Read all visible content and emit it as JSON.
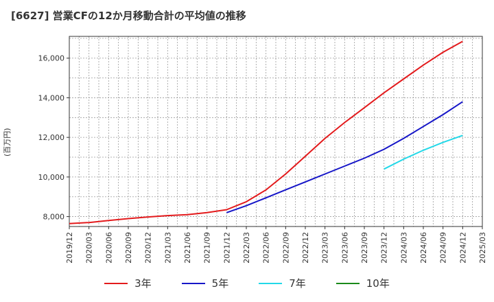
{
  "chart_data": {
    "type": "line",
    "title": "[6627]  営業CFの12か月移動合計の平均値の推移",
    "ylabel": "(百万円)",
    "xlabel": "",
    "x_ticks": [
      "2019/12",
      "2020/03",
      "2020/06",
      "2020/09",
      "2020/12",
      "2021/03",
      "2021/06",
      "2021/09",
      "2021/12",
      "2022/03",
      "2022/06",
      "2022/09",
      "2022/12",
      "2023/03",
      "2023/06",
      "2023/09",
      "2023/12",
      "2024/03",
      "2024/06",
      "2024/09",
      "2024/12",
      "2025/03"
    ],
    "y_ticks": [
      8000,
      10000,
      12000,
      14000,
      16000
    ],
    "y_tick_labels": [
      "8,000",
      "10,000",
      "12,000",
      "14,000",
      "16,000"
    ],
    "xlim": [
      "2019/12",
      "2025/03"
    ],
    "ylim": [
      7500,
      17100
    ],
    "grid": true,
    "legend_position": "bottom",
    "series": [
      {
        "name": "3年",
        "color": "#e31a1c",
        "x": [
          "2019/12",
          "2020/03",
          "2020/06",
          "2020/09",
          "2020/12",
          "2021/03",
          "2021/06",
          "2021/09",
          "2021/12",
          "2022/03",
          "2022/06",
          "2022/09",
          "2022/12",
          "2023/03",
          "2023/06",
          "2023/09",
          "2023/12",
          "2024/03",
          "2024/06",
          "2024/09",
          "2024/12"
        ],
        "values": [
          7650,
          7700,
          7800,
          7900,
          7980,
          8050,
          8100,
          8200,
          8350,
          8750,
          9350,
          10150,
          11050,
          11950,
          12750,
          13500,
          14250,
          14950,
          15650,
          16300,
          16850
        ]
      },
      {
        "name": "5年",
        "color": "#1616c8",
        "x": [
          "2021/12",
          "2022/03",
          "2022/06",
          "2022/09",
          "2022/12",
          "2023/03",
          "2023/06",
          "2023/09",
          "2023/12",
          "2024/03",
          "2024/06",
          "2024/09",
          "2024/12"
        ],
        "values": [
          8200,
          8550,
          8950,
          9350,
          9750,
          10150,
          10550,
          10950,
          11400,
          11950,
          12550,
          13150,
          13800
        ]
      },
      {
        "name": "7年",
        "color": "#22d8e8",
        "x": [
          "2023/12",
          "2024/03",
          "2024/06",
          "2024/09",
          "2024/12"
        ],
        "values": [
          10400,
          10900,
          11350,
          11750,
          12100
        ]
      },
      {
        "name": "10年",
        "color": "#1a8a1a",
        "x": [],
        "values": []
      }
    ]
  }
}
